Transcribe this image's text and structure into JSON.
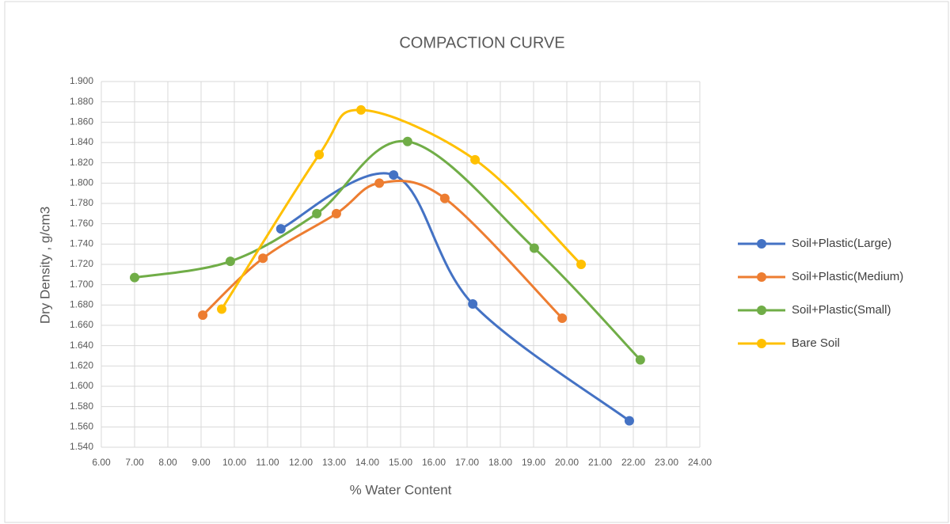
{
  "chart_data": {
    "type": "scatter-smooth",
    "title": "COMPACTION CURVE",
    "x_label": "% Water Content",
    "y_label": "Dry Density , g/cm3",
    "xlim": [
      6,
      24
    ],
    "xticks": [
      {
        "value": 6,
        "label": "6.00"
      },
      {
        "value": 7,
        "label": "7.00"
      },
      {
        "value": 8,
        "label": "8.00"
      },
      {
        "value": 9,
        "label": "9.00"
      },
      {
        "value": 10,
        "label": "10.00"
      },
      {
        "value": 11,
        "label": "11.00"
      },
      {
        "value": 12,
        "label": "12.00"
      },
      {
        "value": 13,
        "label": "13.00"
      },
      {
        "value": 14,
        "label": "14.00"
      },
      {
        "value": 15,
        "label": "15.00"
      },
      {
        "value": 16,
        "label": "16.00"
      },
      {
        "value": 17,
        "label": "17.00"
      },
      {
        "value": 18,
        "label": "18.00"
      },
      {
        "value": 19,
        "label": "19.00"
      },
      {
        "value": 20,
        "label": "20.00"
      },
      {
        "value": 21,
        "label": "21.00"
      },
      {
        "value": 22,
        "label": "22.00"
      },
      {
        "value": 23,
        "label": "23.00"
      },
      {
        "value": 24,
        "label": "24.00"
      }
    ],
    "ylim": [
      1.54,
      1.9
    ],
    "yticks": [
      {
        "value": 1.54,
        "label": "1.540"
      },
      {
        "value": 1.56,
        "label": "1.560"
      },
      {
        "value": 1.58,
        "label": "1.580"
      },
      {
        "value": 1.6,
        "label": "1.600"
      },
      {
        "value": 1.62,
        "label": "1.620"
      },
      {
        "value": 1.64,
        "label": "1.640"
      },
      {
        "value": 1.66,
        "label": "1.660"
      },
      {
        "value": 1.68,
        "label": "1.680"
      },
      {
        "value": 1.7,
        "label": "1.700"
      },
      {
        "value": 1.72,
        "label": "1.720"
      },
      {
        "value": 1.74,
        "label": "1.740"
      },
      {
        "value": 1.76,
        "label": "1.760"
      },
      {
        "value": 1.78,
        "label": "1.780"
      },
      {
        "value": 1.8,
        "label": "1.800"
      },
      {
        "value": 1.82,
        "label": "1.820"
      },
      {
        "value": 1.84,
        "label": "1.840"
      },
      {
        "value": 1.86,
        "label": "1.860"
      },
      {
        "value": 1.88,
        "label": "1.880"
      },
      {
        "value": 1.9,
        "label": "1.900"
      }
    ],
    "grid": true,
    "legend": "right",
    "series": [
      {
        "name": "Soil+Plastic(Large)",
        "color": "#4472c4",
        "x": [
          11.4,
          14.79,
          17.17,
          21.88
        ],
        "values": [
          1.755,
          1.808,
          1.681,
          1.566
        ]
      },
      {
        "name": "Soil+Plastic(Medium)",
        "color": "#ed7d31",
        "x": [
          9.05,
          10.86,
          13.07,
          14.36,
          16.33,
          19.86
        ],
        "values": [
          1.67,
          1.726,
          1.77,
          1.8,
          1.785,
          1.667
        ]
      },
      {
        "name": "Soil+Plastic(Small)",
        "color": "#70ad47",
        "x": [
          7.0,
          9.88,
          12.48,
          15.21,
          19.02,
          22.21
        ],
        "values": [
          1.707,
          1.723,
          1.77,
          1.841,
          1.736,
          1.626
        ]
      },
      {
        "name": "Bare Soil",
        "color": "#ffc000",
        "x": [
          9.62,
          12.55,
          13.81,
          17.24,
          20.43
        ],
        "values": [
          1.676,
          1.828,
          1.872,
          1.823,
          1.72
        ]
      }
    ]
  }
}
